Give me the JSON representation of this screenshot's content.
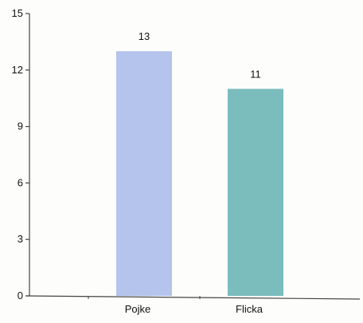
{
  "chart_data": {
    "type": "bar",
    "title": "",
    "xlabel": "",
    "ylabel": "",
    "categories": [
      "Pojke",
      "Flicka"
    ],
    "values": [
      13,
      11
    ],
    "data_labels": [
      "13",
      "11"
    ],
    "ylim": [
      0,
      15
    ],
    "yticks": [
      0,
      3,
      6,
      9,
      12,
      15
    ],
    "ytick_labels": [
      "0",
      "3",
      "6",
      "9",
      "12",
      "15"
    ],
    "grid": false,
    "legend": "none",
    "colors": {
      "bars": [
        "#b4c4ec",
        "#7bbcbc"
      ],
      "axis": "#444444",
      "text": "#111111"
    }
  }
}
